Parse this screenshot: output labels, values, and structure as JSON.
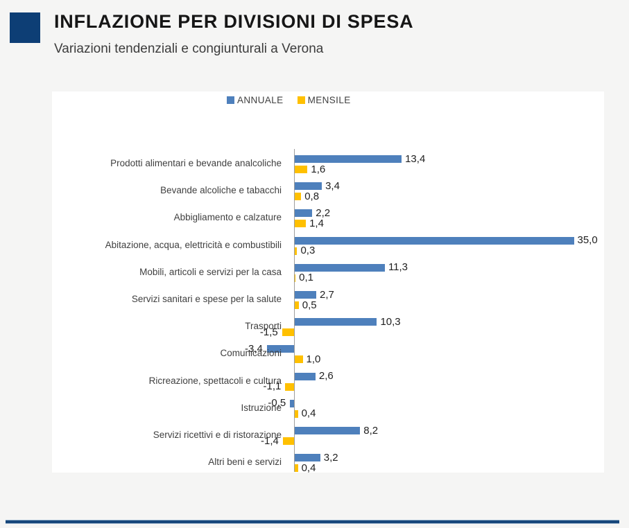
{
  "header": {
    "title": "INFLAZIONE PER DIVISIONI DI SPESA",
    "subtitle": "Variazioni tendenziali e congiunturali a Verona",
    "accent_color": "#0d3e75"
  },
  "legend": [
    {
      "label": "ANNUALE",
      "color": "#4e80bc"
    },
    {
      "label": "MENSILE",
      "color": "#ffc000"
    }
  ],
  "chart_data": {
    "type": "bar",
    "orientation": "horizontal",
    "title": "Inflazione per divisioni di spesa - Verona",
    "value_format": "decimal-comma",
    "axis_color": "#9c9c9c",
    "legend_position": "top",
    "grid": false,
    "xlim": [
      -4,
      38
    ],
    "categories": [
      "Prodotti alimentari e bevande analcoliche",
      "Bevande alcoliche e tabacchi",
      "Abbigliamento e calzature",
      "Abitazione, acqua, elettricità e combustibili",
      "Mobili, articoli e servizi per la casa",
      "Servizi sanitari e spese per la salute",
      "Trasporti",
      "Comunicazioni",
      "Ricreazione, spettacoli e cultura",
      "Istruzione",
      "Servizi ricettivi e di ristorazione",
      "Altri beni e servizi"
    ],
    "series": [
      {
        "name": "ANNUALE",
        "color": "#4e80bc",
        "values": [
          13.4,
          3.4,
          2.2,
          35.0,
          11.3,
          2.7,
          10.3,
          -3.4,
          2.6,
          -0.5,
          8.2,
          3.2
        ],
        "labels": [
          "13,4",
          "3,4",
          "2,2",
          "35,0",
          "11,3",
          "2,7",
          "10,3",
          "-3,4",
          "2,6",
          "-0,5",
          "8,2",
          "3,2"
        ]
      },
      {
        "name": "MENSILE",
        "color": "#ffc000",
        "values": [
          1.6,
          0.8,
          1.4,
          0.3,
          0.1,
          0.5,
          -1.5,
          1.0,
          -1.1,
          0.4,
          -1.4,
          0.4
        ],
        "labels": [
          "1,6",
          "0,8",
          "1,4",
          "0,3",
          "0,1",
          "0,5",
          "-1,5",
          "1,0",
          "-1,1",
          "0,4",
          "-1,4",
          "0,4"
        ]
      }
    ]
  }
}
